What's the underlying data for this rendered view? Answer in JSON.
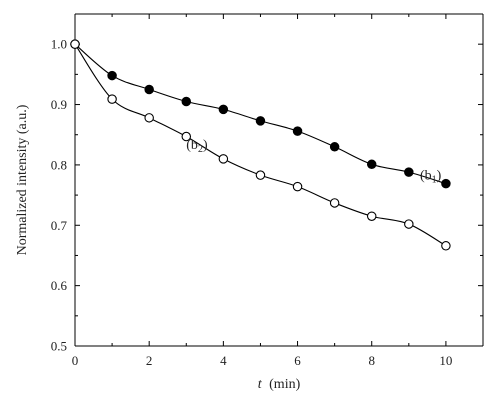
{
  "chart_data": {
    "type": "scatter",
    "title": "",
    "xlabel_italic": "t",
    "xlabel_unit": "(min)",
    "ylabel": "Normalized intensity (a.u.)",
    "xlim": [
      0,
      11
    ],
    "ylim": [
      0.5,
      1.05
    ],
    "xticks": [
      0,
      2,
      4,
      6,
      8,
      10
    ],
    "yticks": [
      0.5,
      0.6,
      0.7,
      0.8,
      0.9,
      1.0
    ],
    "ytick_labels": [
      "0.5",
      "0.6",
      "0.7",
      "0.8",
      "0.9",
      "1.0"
    ],
    "grid": false,
    "legend": "none",
    "series": [
      {
        "name": "(b1)",
        "marker": "filled-circle",
        "color": "#000000",
        "x": [
          0,
          1,
          2,
          3,
          4,
          5,
          6,
          7,
          8,
          9,
          10
        ],
        "y": [
          1.0,
          0.948,
          0.925,
          0.905,
          0.892,
          0.873,
          0.856,
          0.83,
          0.801,
          0.788,
          0.769
        ]
      },
      {
        "name": "(b2)",
        "marker": "open-circle",
        "color": "#000000",
        "x": [
          0,
          1,
          2,
          3,
          4,
          5,
          6,
          7,
          8,
          9,
          10
        ],
        "y": [
          1.0,
          0.909,
          0.878,
          0.847,
          0.81,
          0.783,
          0.764,
          0.737,
          0.715,
          0.702,
          0.666
        ]
      }
    ],
    "annotations": [
      {
        "base": "(b",
        "sub": "1",
        "close": ")",
        "x": 9.3,
        "y": 0.776
      },
      {
        "base": "(b",
        "sub": "2",
        "close": ")",
        "x": 3.0,
        "y": 0.826
      }
    ]
  }
}
